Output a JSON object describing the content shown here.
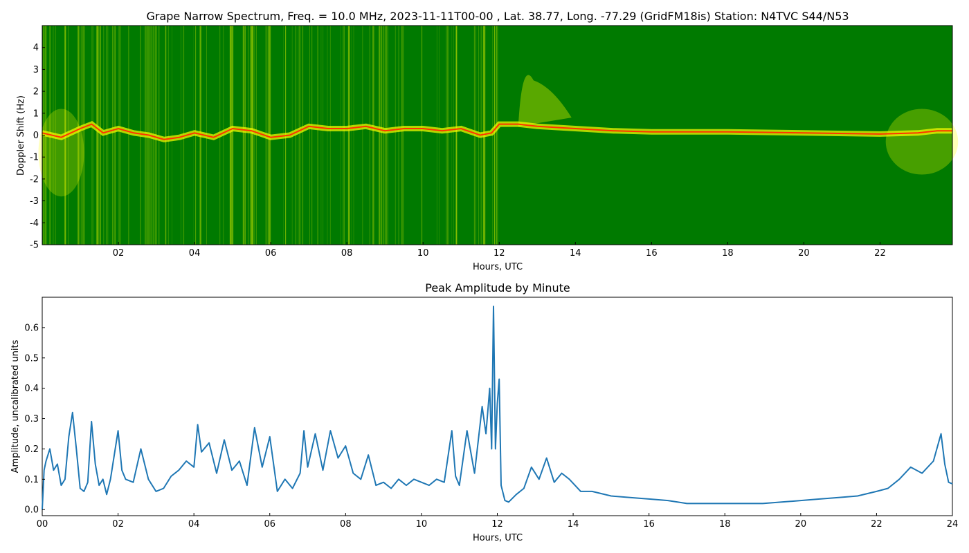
{
  "colors": {
    "spec_background": "#007a00",
    "spec_yellow": "#ffff00",
    "spec_red": "#ff3300",
    "line": "#1f77b4",
    "axis": "#000000"
  },
  "chart_data": [
    {
      "type": "heatmap",
      "title": "Grape Narrow Spectrum, Freq. = 10.0 MHz, 2023-11-11T00-00 , Lat.  38.77, Long. -77.29 (GridFM18is) Station: N4TVC S44/N53",
      "xlabel": "Hours, UTC",
      "ylabel": "Doppler Shift (Hz)",
      "xlim": [
        0,
        23.9
      ],
      "ylim": [
        -5,
        5
      ],
      "xticks": [
        2,
        4,
        6,
        8,
        10,
        12,
        14,
        16,
        18,
        20,
        22
      ],
      "xtick_labels": [
        "02",
        "04",
        "06",
        "08",
        "10",
        "12",
        "14",
        "16",
        "18",
        "20",
        "22"
      ],
      "yticks": [
        -5,
        -4,
        -3,
        -2,
        -1,
        0,
        1,
        2,
        3,
        4
      ],
      "ytick_labels": [
        "-5",
        "-4",
        "-3",
        "-2",
        "-1",
        "0",
        "1",
        "2",
        "3",
        "4"
      ],
      "colormap": [
        "#007a00",
        "#ffff00",
        "#ff3300"
      ],
      "doppler_trace": {
        "x": [
          0,
          0.5,
          1,
          1.3,
          1.6,
          2,
          2.4,
          2.8,
          3.2,
          3.6,
          4,
          4.5,
          5,
          5.5,
          6,
          6.5,
          7,
          7.5,
          8,
          8.5,
          9,
          9.5,
          10,
          10.5,
          11,
          11.5,
          11.8,
          12,
          12.5,
          13,
          14,
          15,
          16,
          18,
          20,
          22,
          23,
          23.5,
          23.9
        ],
        "y": [
          0.1,
          -0.1,
          0.3,
          0.5,
          0.1,
          0.3,
          0.1,
          0,
          -0.2,
          -0.1,
          0.1,
          -0.1,
          0.3,
          0.2,
          -0.1,
          0,
          0.4,
          0.3,
          0.3,
          0.4,
          0.2,
          0.3,
          0.3,
          0.2,
          0.3,
          0,
          0.1,
          0.5,
          0.5,
          0.4,
          0.3,
          0.2,
          0.15,
          0.15,
          0.1,
          0.05,
          0.1,
          0.2,
          0.2
        ]
      },
      "features": [
        {
          "x_start": 0,
          "x_end": 12.0,
          "description": "vertical yellow streaks"
        },
        {
          "x_start": 12.5,
          "x_end": 14.0,
          "y_max": 3.5,
          "description": "yellow plume above trace"
        },
        {
          "x_start": 22.0,
          "x_end": 23.9,
          "description": "yellow spread around zero"
        }
      ]
    },
    {
      "type": "line",
      "title": "Peak Amplitude by Minute",
      "xlabel": "Hours, UTC",
      "ylabel": "Amplitude, uncalibrated units",
      "xlim": [
        0,
        24
      ],
      "ylim": [
        -0.02,
        0.7
      ],
      "xticks": [
        0,
        2,
        4,
        6,
        8,
        10,
        12,
        14,
        16,
        18,
        20,
        22,
        24
      ],
      "xtick_labels": [
        "00",
        "02",
        "04",
        "06",
        "08",
        "10",
        "12",
        "14",
        "16",
        "18",
        "20",
        "22",
        "24"
      ],
      "yticks": [
        0.0,
        0.1,
        0.2,
        0.3,
        0.4,
        0.5,
        0.6
      ],
      "ytick_labels": [
        "0.0",
        "0.1",
        "0.2",
        "0.3",
        "0.4",
        "0.5",
        "0.6"
      ],
      "series": [
        {
          "x": [
            0,
            0.05,
            0.1,
            0.2,
            0.3,
            0.4,
            0.5,
            0.6,
            0.7,
            0.8,
            0.9,
            1.0,
            1.1,
            1.2,
            1.3,
            1.4,
            1.5,
            1.6,
            1.7,
            1.8,
            1.9,
            2.0,
            2.1,
            2.2,
            2.4,
            2.6,
            2.8,
            3.0,
            3.2,
            3.4,
            3.6,
            3.8,
            4.0,
            4.1,
            4.2,
            4.4,
            4.6,
            4.8,
            5.0,
            5.2,
            5.4,
            5.6,
            5.8,
            6.0,
            6.2,
            6.4,
            6.6,
            6.8,
            6.9,
            7.0,
            7.2,
            7.4,
            7.6,
            7.8,
            8.0,
            8.2,
            8.4,
            8.6,
            8.8,
            9.0,
            9.2,
            9.4,
            9.6,
            9.8,
            10.0,
            10.2,
            10.4,
            10.6,
            10.8,
            10.9,
            11.0,
            11.2,
            11.4,
            11.6,
            11.7,
            11.8,
            11.85,
            11.9,
            11.95,
            12.0,
            12.05,
            12.1,
            12.2,
            12.3,
            12.5,
            12.7,
            12.9,
            13.1,
            13.3,
            13.5,
            13.7,
            13.9,
            14.2,
            14.5,
            15.0,
            15.5,
            16.0,
            16.5,
            17.0,
            17.5,
            18.0,
            18.5,
            19.0,
            19.5,
            20.0,
            20.5,
            21.0,
            21.5,
            22.0,
            22.3,
            22.6,
            22.9,
            23.2,
            23.5,
            23.7,
            23.8,
            23.9,
            24.0
          ],
          "values": [
            0.0,
            0.13,
            0.16,
            0.2,
            0.13,
            0.15,
            0.08,
            0.1,
            0.24,
            0.32,
            0.2,
            0.07,
            0.06,
            0.09,
            0.29,
            0.15,
            0.08,
            0.1,
            0.05,
            0.1,
            0.18,
            0.26,
            0.13,
            0.1,
            0.09,
            0.2,
            0.1,
            0.06,
            0.07,
            0.11,
            0.13,
            0.16,
            0.14,
            0.28,
            0.19,
            0.22,
            0.12,
            0.23,
            0.13,
            0.16,
            0.08,
            0.27,
            0.14,
            0.24,
            0.06,
            0.1,
            0.07,
            0.12,
            0.26,
            0.14,
            0.25,
            0.13,
            0.26,
            0.17,
            0.21,
            0.12,
            0.1,
            0.18,
            0.08,
            0.09,
            0.07,
            0.1,
            0.08,
            0.1,
            0.09,
            0.08,
            0.1,
            0.09,
            0.26,
            0.11,
            0.08,
            0.26,
            0.12,
            0.34,
            0.25,
            0.4,
            0.2,
            0.67,
            0.2,
            0.35,
            0.43,
            0.08,
            0.03,
            0.025,
            0.05,
            0.07,
            0.14,
            0.1,
            0.17,
            0.09,
            0.12,
            0.1,
            0.06,
            0.06,
            0.045,
            0.04,
            0.035,
            0.03,
            0.02,
            0.02,
            0.02,
            0.02,
            0.02,
            0.025,
            0.03,
            0.035,
            0.04,
            0.045,
            0.06,
            0.07,
            0.1,
            0.14,
            0.12,
            0.16,
            0.25,
            0.15,
            0.09,
            0.085
          ]
        }
      ]
    }
  ]
}
